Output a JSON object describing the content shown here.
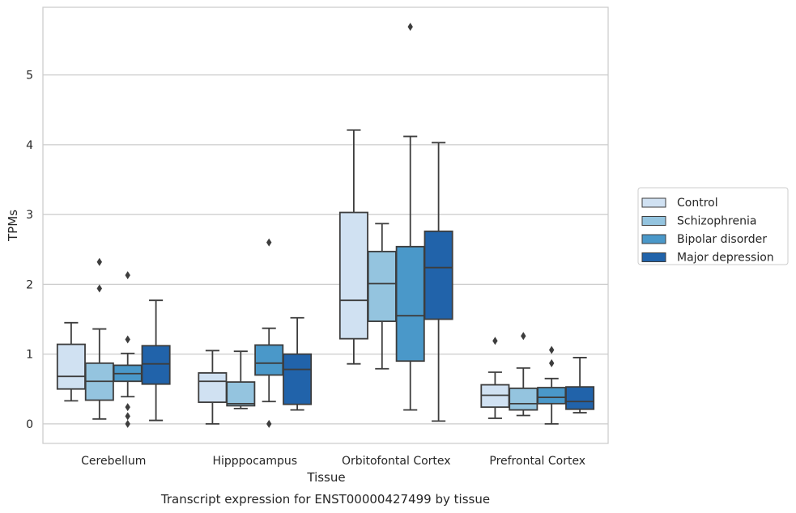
{
  "chart_data": {
    "type": "box",
    "title": "",
    "caption": "Transcript expression for ENST00000427499 by tissue",
    "xlabel": "Tissue",
    "ylabel": "TPMs",
    "ylim": [
      -0.28,
      5.97
    ],
    "yticks": [
      0,
      1,
      2,
      3,
      4,
      5
    ],
    "grid": "horizontal",
    "legend_position": "right",
    "categories": [
      "Cerebellum",
      "Hipppocampus",
      "Orbitofontal Cortex",
      "Prefrontal Cortex"
    ],
    "series": [
      {
        "name": "Control",
        "color": "#d0e1f2",
        "boxes": [
          {
            "whislo": 0.33,
            "q1": 0.5,
            "med": 0.68,
            "q3": 1.14,
            "whishi": 1.45,
            "fliers": []
          },
          {
            "whislo": 0.0,
            "q1": 0.31,
            "med": 0.61,
            "q3": 0.73,
            "whishi": 1.05,
            "fliers": []
          },
          {
            "whislo": 0.86,
            "q1": 1.22,
            "med": 1.77,
            "q3": 3.03,
            "whishi": 4.21,
            "fliers": []
          },
          {
            "whislo": 0.08,
            "q1": 0.24,
            "med": 0.41,
            "q3": 0.56,
            "whishi": 0.74,
            "fliers": [
              1.19
            ]
          }
        ]
      },
      {
        "name": "Schizophrenia",
        "color": "#94c4df",
        "boxes": [
          {
            "whislo": 0.07,
            "q1": 0.34,
            "med": 0.61,
            "q3": 0.87,
            "whishi": 1.36,
            "fliers": [
              1.94,
              2.32
            ]
          },
          {
            "whislo": 0.22,
            "q1": 0.26,
            "med": 0.29,
            "q3": 0.6,
            "whishi": 1.04,
            "fliers": []
          },
          {
            "whislo": 0.79,
            "q1": 1.47,
            "med": 2.01,
            "q3": 2.47,
            "whishi": 2.87,
            "fliers": []
          },
          {
            "whislo": 0.12,
            "q1": 0.2,
            "med": 0.29,
            "q3": 0.51,
            "whishi": 0.8,
            "fliers": [
              1.26
            ]
          }
        ]
      },
      {
        "name": "Bipolar disorder",
        "color": "#4a98c9",
        "boxes": [
          {
            "whislo": 0.39,
            "q1": 0.61,
            "med": 0.72,
            "q3": 0.84,
            "whishi": 1.01,
            "fliers": [
              1.21,
              2.13,
              0.24,
              0.11,
              0.0
            ]
          },
          {
            "whislo": 0.32,
            "q1": 0.7,
            "med": 0.87,
            "q3": 1.13,
            "whishi": 1.37,
            "fliers": [
              2.6,
              0.0
            ]
          },
          {
            "whislo": 0.2,
            "q1": 0.9,
            "med": 1.55,
            "q3": 2.54,
            "whishi": 4.12,
            "fliers": [
              5.69
            ]
          },
          {
            "whislo": 0.0,
            "q1": 0.29,
            "med": 0.38,
            "q3": 0.52,
            "whishi": 0.65,
            "fliers": [
              0.87,
              1.06
            ]
          }
        ]
      },
      {
        "name": "Major depression",
        "color": "#2163aa",
        "boxes": [
          {
            "whislo": 0.05,
            "q1": 0.57,
            "med": 0.86,
            "q3": 1.12,
            "whishi": 1.77,
            "fliers": []
          },
          {
            "whislo": 0.2,
            "q1": 0.28,
            "med": 0.78,
            "q3": 1.0,
            "whishi": 1.52,
            "fliers": []
          },
          {
            "whislo": 0.04,
            "q1": 1.5,
            "med": 2.24,
            "q3": 2.76,
            "whishi": 4.03,
            "fliers": []
          },
          {
            "whislo": 0.16,
            "q1": 0.21,
            "med": 0.32,
            "q3": 0.53,
            "whishi": 0.95,
            "fliers": []
          }
        ]
      }
    ]
  }
}
